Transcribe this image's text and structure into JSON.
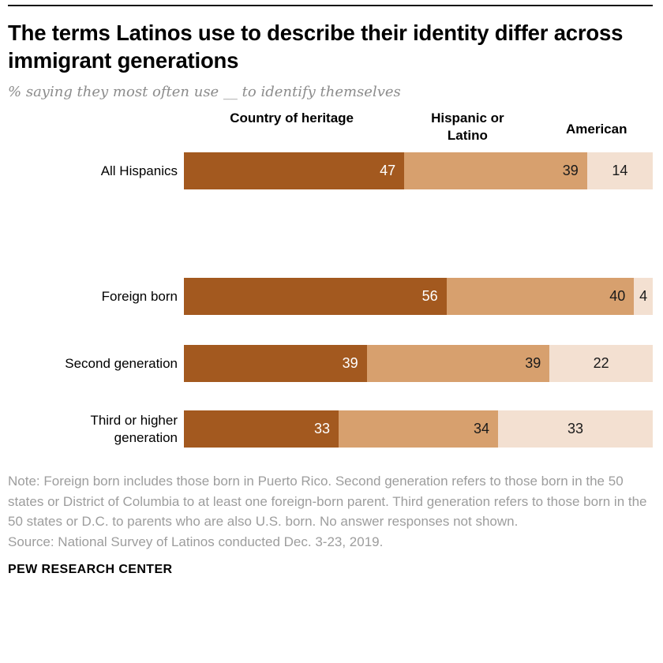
{
  "chart_data": {
    "type": "bar",
    "stacked": true,
    "orientation": "horizontal",
    "title": "The terms Latinos use to describe their identity differ across immigrant generations",
    "subtitle": "% saying they most often use __ to identify themselves",
    "categories": [
      "All Hispanics",
      "Foreign born",
      "Second generation",
      "Third or higher generation"
    ],
    "series": [
      {
        "name": "Country of heritage",
        "color": "#A3591F",
        "value_text_color": "#FFFFFF",
        "values": [
          47,
          56,
          39,
          33
        ]
      },
      {
        "name": "Hispanic or Latino",
        "color": "#D7A06E",
        "value_text_color": "#1A1A1A",
        "values": [
          39,
          40,
          39,
          34
        ]
      },
      {
        "name": "American",
        "color": "#F3E0D1",
        "value_text_color": "#1A1A1A",
        "values": [
          14,
          4,
          22,
          33
        ]
      }
    ],
    "xlim": [
      0,
      100
    ],
    "value_labels_shown": true,
    "legend_position": "top",
    "separator_after_category_index": 0
  },
  "footer": {
    "note": "Note: Foreign born includes those born in Puerto Rico. Second generation refers to those born in the 50 states or District of Columbia to at least one foreign-born parent. Third generation refers to those born in the 50 states or D.C. to parents who are also U.S. born. No answer responses not shown.",
    "source": "Source: National Survey of Latinos conducted Dec. 3-23, 2019.",
    "brand": "PEW RESEARCH CENTER"
  }
}
